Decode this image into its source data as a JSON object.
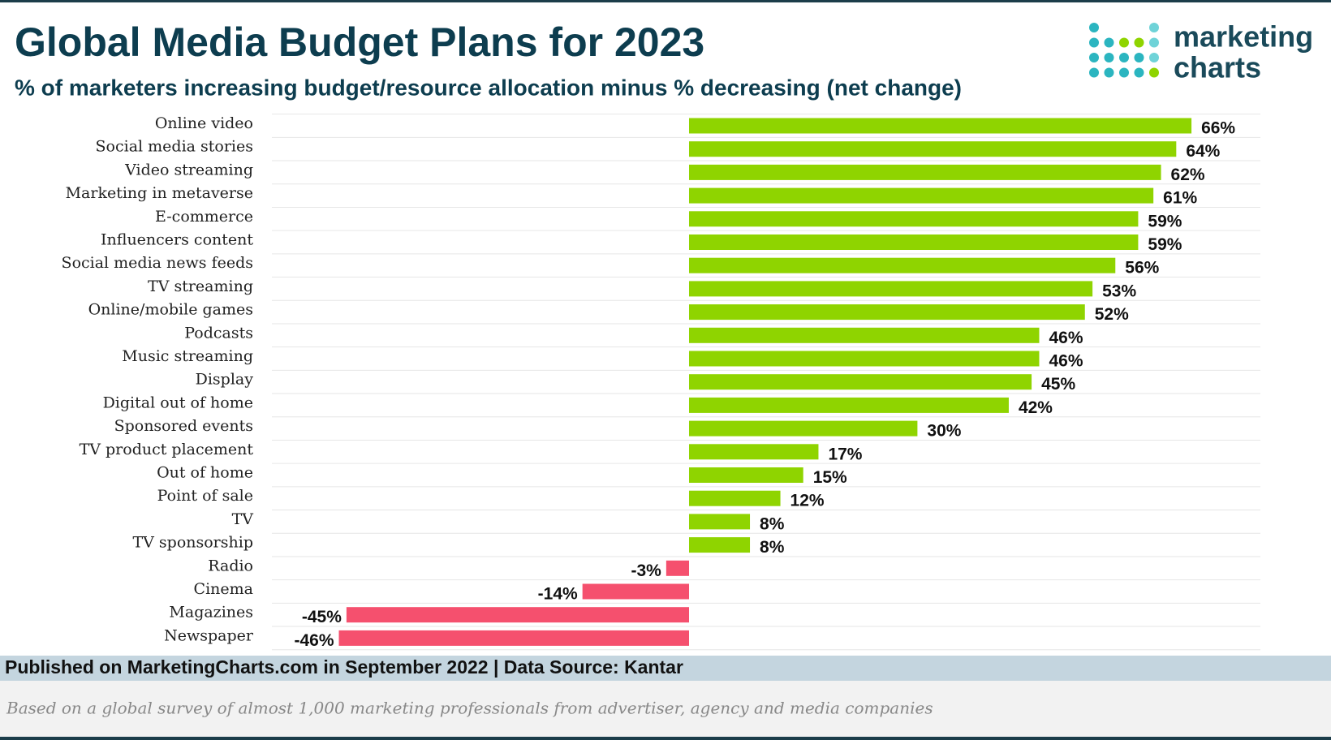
{
  "chart_data": {
    "type": "bar",
    "orientation": "horizontal",
    "title": "Global Media Budget Plans for 2023",
    "subtitle": "% of marketers increasing budget/resource allocation minus % decreasing (net change)",
    "logo": [
      "marketing",
      "charts"
    ],
    "categories": [
      "Online video",
      "Social media stories",
      "Video streaming",
      "Marketing in metaverse",
      "E-commerce",
      "Influencers content",
      "Social media news feeds",
      "TV streaming",
      "Online/mobile games",
      "Podcasts",
      "Music streaming",
      "Display",
      "Digital out of home",
      "Sponsored events",
      "TV product placement",
      "Out of home",
      "Point of sale",
      "TV",
      "TV sponsorship",
      "Radio",
      "Cinema",
      "Magazines",
      "Newspaper"
    ],
    "values": [
      66,
      64,
      62,
      61,
      59,
      59,
      56,
      53,
      52,
      46,
      46,
      45,
      42,
      30,
      17,
      15,
      12,
      8,
      8,
      -3,
      -14,
      -45,
      -46
    ],
    "value_labels": [
      "66%",
      "64%",
      "62%",
      "61%",
      "59%",
      "59%",
      "56%",
      "53%",
      "52%",
      "46%",
      "46%",
      "45%",
      "42%",
      "30%",
      "17%",
      "15%",
      "12%",
      "8%",
      "8%",
      "-3%",
      "-14%",
      "-45%",
      "-46%"
    ],
    "color": "#8fd400",
    "negative_color": "#f5506e",
    "source": "Published on MarketingCharts.com in September 2022 | Data Source: Kantar",
    "note": "Based on a global survey of almost 1,000 marketing professionals from advertiser, agency and media companies"
  }
}
